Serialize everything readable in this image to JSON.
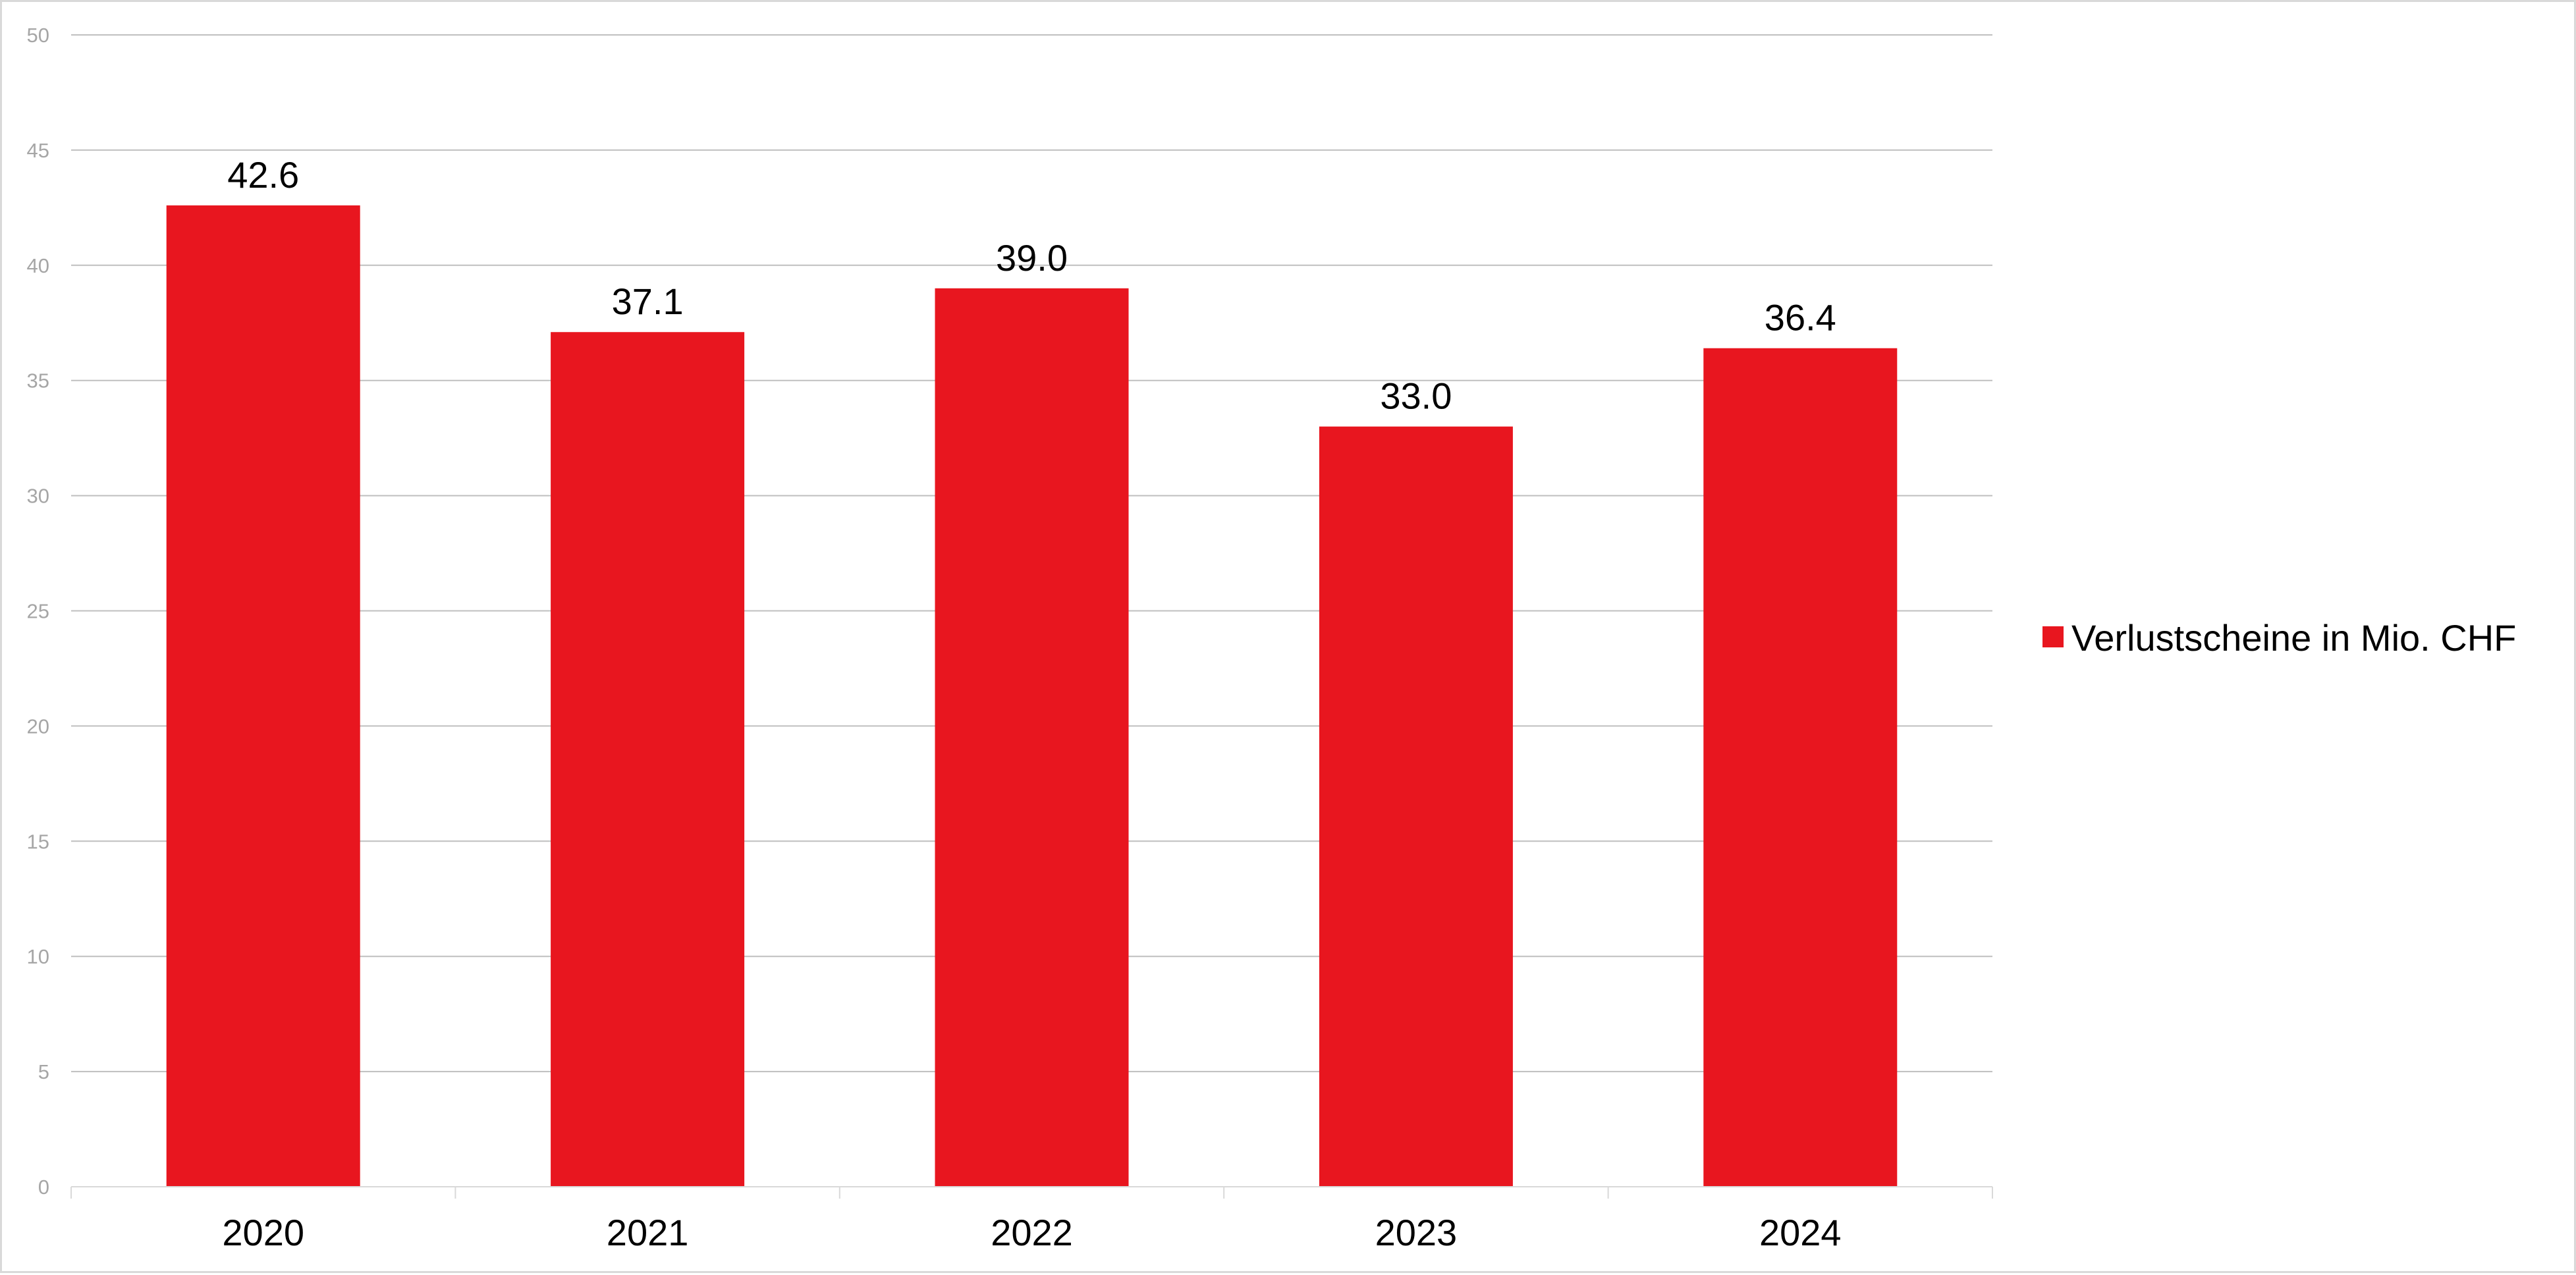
{
  "chart_data": {
    "type": "bar",
    "title": "",
    "xlabel": "",
    "ylabel": "",
    "categories": [
      "2020",
      "2021",
      "2022",
      "2023",
      "2024"
    ],
    "series": [
      {
        "name": "Verlustscheine in Mio. CHF",
        "values": [
          42.6,
          37.1,
          39.0,
          33.0,
          36.4
        ],
        "labels": [
          "42.6",
          "37.1",
          "39.0",
          "33.0",
          "36.4"
        ],
        "color": "#e8161f"
      }
    ],
    "ylim": [
      0,
      50
    ],
    "yticks": [
      0,
      5,
      10,
      15,
      20,
      25,
      30,
      35,
      40,
      45,
      50
    ],
    "grid": true,
    "legend_position": "right",
    "colors": {
      "gridline": "#bfbfbf",
      "axis_tick_text": "#a6a6a6",
      "label_text": "#000000"
    }
  }
}
